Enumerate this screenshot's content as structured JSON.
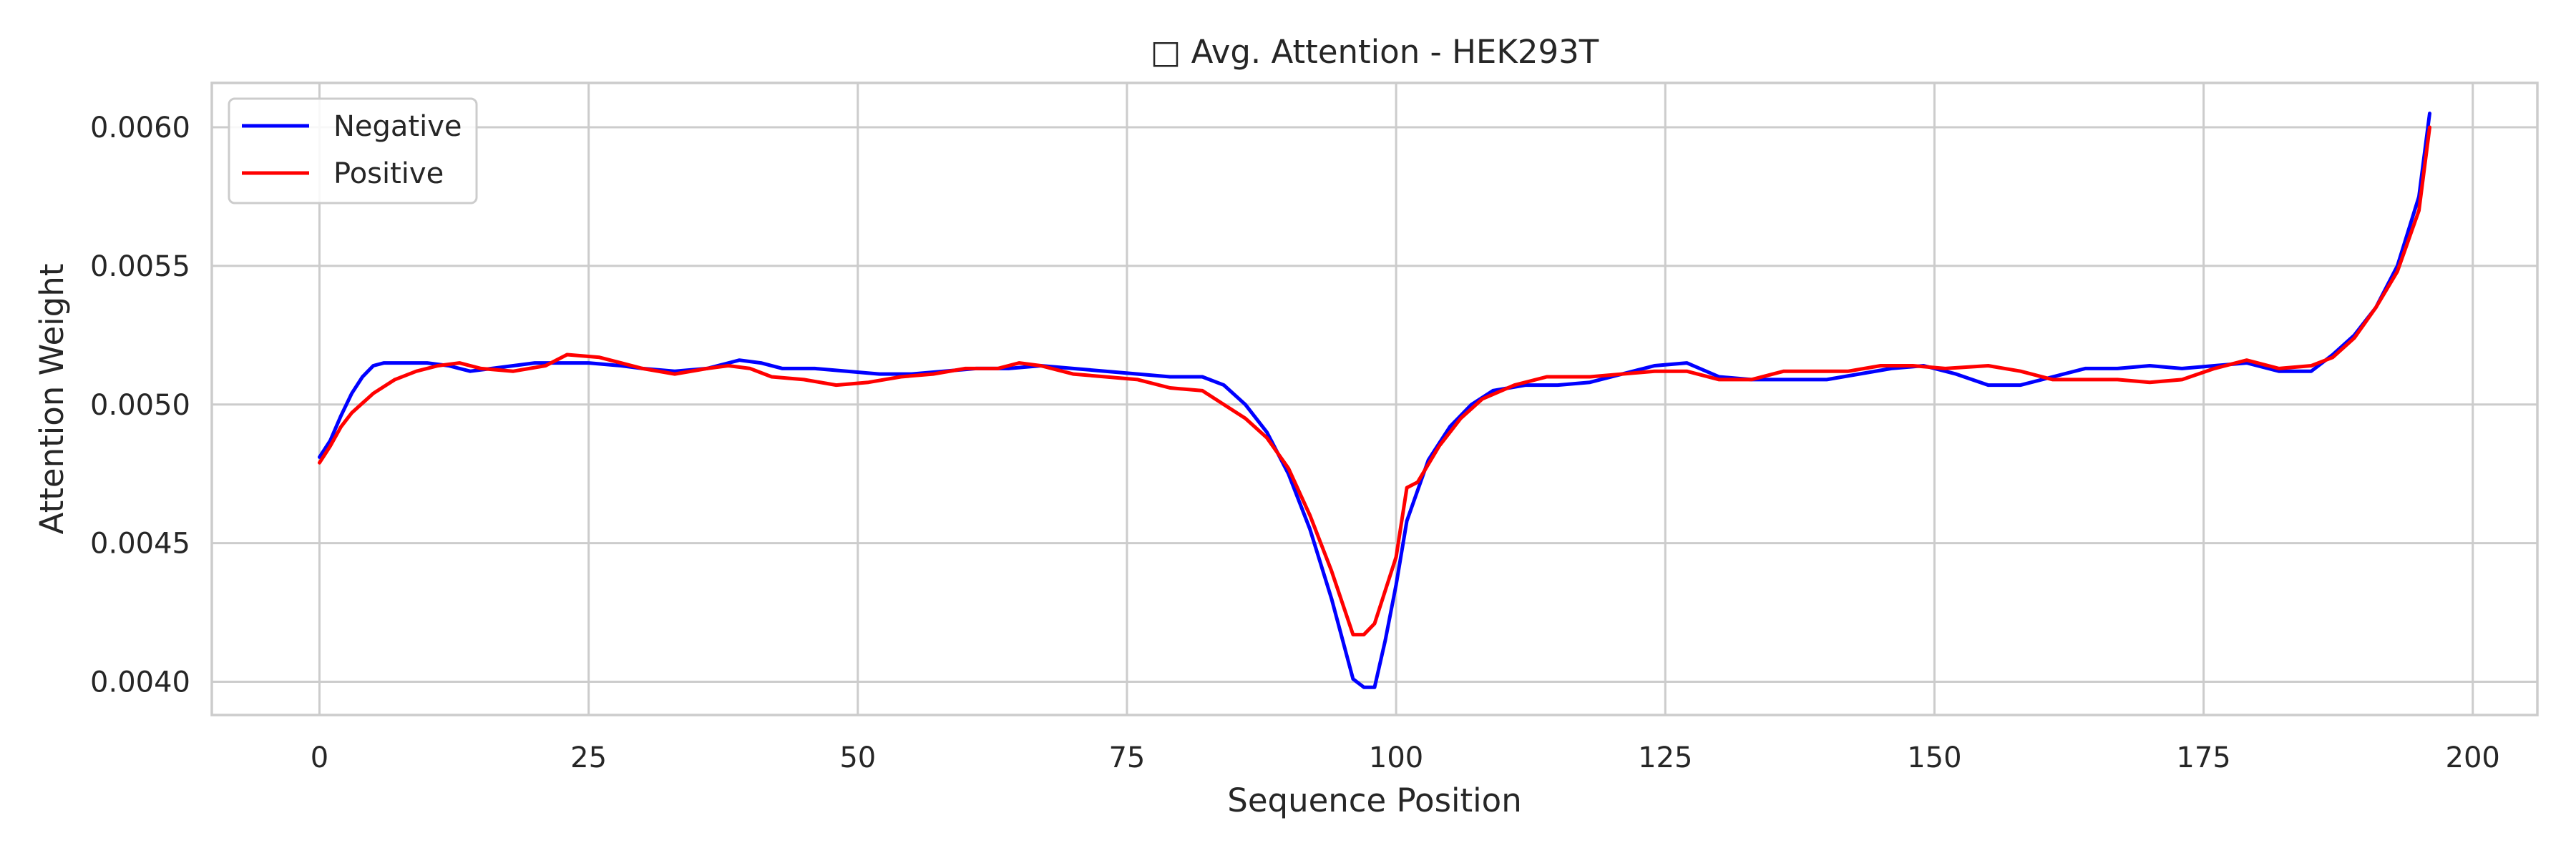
{
  "chart_data": {
    "type": "line",
    "title": "□ Avg. Attention - HEK293T",
    "xlabel": "Sequence Position",
    "ylabel": "Attention Weight",
    "xlim": [
      -10,
      206
    ],
    "ylim": [
      0.00388,
      0.00616
    ],
    "xticks": [
      0,
      25,
      50,
      75,
      100,
      125,
      150,
      175,
      200
    ],
    "xtick_labels": [
      "0",
      "25",
      "50",
      "75",
      "100",
      "125",
      "150",
      "175",
      "200"
    ],
    "yticks": [
      0.004,
      0.0045,
      0.005,
      0.0055,
      0.006
    ],
    "ytick_labels": [
      "0.0040",
      "0.0045",
      "0.0050",
      "0.0055",
      "0.0060"
    ],
    "grid": true,
    "legend_position": "top-left",
    "series": [
      {
        "name": "Negative",
        "color": "#0000ff",
        "points": [
          [
            0,
            0.00481
          ],
          [
            1,
            0.00487
          ],
          [
            2,
            0.00496
          ],
          [
            3,
            0.00504
          ],
          [
            4,
            0.0051
          ],
          [
            5,
            0.00514
          ],
          [
            6,
            0.00515
          ],
          [
            8,
            0.00515
          ],
          [
            10,
            0.00515
          ],
          [
            12,
            0.00514
          ],
          [
            14,
            0.00512
          ],
          [
            16,
            0.00513
          ],
          [
            18,
            0.00514
          ],
          [
            20,
            0.00515
          ],
          [
            25,
            0.00515
          ],
          [
            28,
            0.00514
          ],
          [
            30,
            0.00513
          ],
          [
            33,
            0.00512
          ],
          [
            36,
            0.00513
          ],
          [
            39,
            0.00516
          ],
          [
            41,
            0.00515
          ],
          [
            43,
            0.00513
          ],
          [
            46,
            0.00513
          ],
          [
            49,
            0.00512
          ],
          [
            52,
            0.00511
          ],
          [
            55,
            0.00511
          ],
          [
            58,
            0.00512
          ],
          [
            61,
            0.00513
          ],
          [
            64,
            0.00513
          ],
          [
            67,
            0.00514
          ],
          [
            70,
            0.00513
          ],
          [
            73,
            0.00512
          ],
          [
            76,
            0.00511
          ],
          [
            79,
            0.0051
          ],
          [
            82,
            0.0051
          ],
          [
            84,
            0.00507
          ],
          [
            86,
            0.005
          ],
          [
            88,
            0.0049
          ],
          [
            90,
            0.00475
          ],
          [
            92,
            0.00455
          ],
          [
            94,
            0.0043
          ],
          [
            96,
            0.00401
          ],
          [
            97,
            0.00398
          ],
          [
            98,
            0.00398
          ],
          [
            99,
            0.00415
          ],
          [
            100,
            0.00435
          ],
          [
            101,
            0.00458
          ],
          [
            103,
            0.0048
          ],
          [
            105,
            0.00492
          ],
          [
            107,
            0.005
          ],
          [
            109,
            0.00505
          ],
          [
            112,
            0.00507
          ],
          [
            115,
            0.00507
          ],
          [
            118,
            0.00508
          ],
          [
            121,
            0.00511
          ],
          [
            124,
            0.00514
          ],
          [
            127,
            0.00515
          ],
          [
            130,
            0.0051
          ],
          [
            133,
            0.00509
          ],
          [
            137,
            0.00509
          ],
          [
            140,
            0.00509
          ],
          [
            143,
            0.00511
          ],
          [
            146,
            0.00513
          ],
          [
            149,
            0.00514
          ],
          [
            152,
            0.00511
          ],
          [
            155,
            0.00507
          ],
          [
            158,
            0.00507
          ],
          [
            161,
            0.0051
          ],
          [
            164,
            0.00513
          ],
          [
            167,
            0.00513
          ],
          [
            170,
            0.00514
          ],
          [
            173,
            0.00513
          ],
          [
            176,
            0.00514
          ],
          [
            179,
            0.00515
          ],
          [
            182,
            0.00512
          ],
          [
            185,
            0.00512
          ],
          [
            187,
            0.00518
          ],
          [
            189,
            0.00525
          ],
          [
            191,
            0.00535
          ],
          [
            193,
            0.0055
          ],
          [
            195,
            0.00575
          ],
          [
            196,
            0.00605
          ]
        ]
      },
      {
        "name": "Positive",
        "color": "#ff0000",
        "points": [
          [
            0,
            0.00479
          ],
          [
            1,
            0.00485
          ],
          [
            2,
            0.00492
          ],
          [
            3,
            0.00497
          ],
          [
            5,
            0.00504
          ],
          [
            7,
            0.00509
          ],
          [
            9,
            0.00512
          ],
          [
            11,
            0.00514
          ],
          [
            13,
            0.00515
          ],
          [
            15,
            0.00513
          ],
          [
            18,
            0.00512
          ],
          [
            21,
            0.00514
          ],
          [
            23,
            0.00518
          ],
          [
            26,
            0.00517
          ],
          [
            28,
            0.00515
          ],
          [
            30,
            0.00513
          ],
          [
            33,
            0.00511
          ],
          [
            36,
            0.00513
          ],
          [
            38,
            0.00514
          ],
          [
            40,
            0.00513
          ],
          [
            42,
            0.0051
          ],
          [
            45,
            0.00509
          ],
          [
            48,
            0.00507
          ],
          [
            51,
            0.00508
          ],
          [
            54,
            0.0051
          ],
          [
            57,
            0.00511
          ],
          [
            60,
            0.00513
          ],
          [
            63,
            0.00513
          ],
          [
            65,
            0.00515
          ],
          [
            67,
            0.00514
          ],
          [
            70,
            0.00511
          ],
          [
            73,
            0.0051
          ],
          [
            76,
            0.00509
          ],
          [
            79,
            0.00506
          ],
          [
            82,
            0.00505
          ],
          [
            84,
            0.005
          ],
          [
            86,
            0.00495
          ],
          [
            88,
            0.00488
          ],
          [
            90,
            0.00477
          ],
          [
            92,
            0.0046
          ],
          [
            94,
            0.0044
          ],
          [
            96,
            0.00417
          ],
          [
            97,
            0.00417
          ],
          [
            98,
            0.00421
          ],
          [
            100,
            0.00445
          ],
          [
            101,
            0.0047
          ],
          [
            102,
            0.00472
          ],
          [
            104,
            0.00485
          ],
          [
            106,
            0.00495
          ],
          [
            108,
            0.00502
          ],
          [
            111,
            0.00507
          ],
          [
            114,
            0.0051
          ],
          [
            118,
            0.0051
          ],
          [
            121,
            0.00511
          ],
          [
            124,
            0.00512
          ],
          [
            127,
            0.00512
          ],
          [
            130,
            0.00509
          ],
          [
            133,
            0.00509
          ],
          [
            136,
            0.00512
          ],
          [
            139,
            0.00512
          ],
          [
            142,
            0.00512
          ],
          [
            145,
            0.00514
          ],
          [
            148,
            0.00514
          ],
          [
            151,
            0.00513
          ],
          [
            155,
            0.00514
          ],
          [
            158,
            0.00512
          ],
          [
            161,
            0.00509
          ],
          [
            164,
            0.00509
          ],
          [
            167,
            0.00509
          ],
          [
            170,
            0.00508
          ],
          [
            173,
            0.00509
          ],
          [
            176,
            0.00513
          ],
          [
            179,
            0.00516
          ],
          [
            182,
            0.00513
          ],
          [
            185,
            0.00514
          ],
          [
            187,
            0.00517
          ],
          [
            189,
            0.00524
          ],
          [
            191,
            0.00535
          ],
          [
            193,
            0.00548
          ],
          [
            195,
            0.0057
          ],
          [
            196,
            0.006
          ]
        ]
      }
    ]
  }
}
